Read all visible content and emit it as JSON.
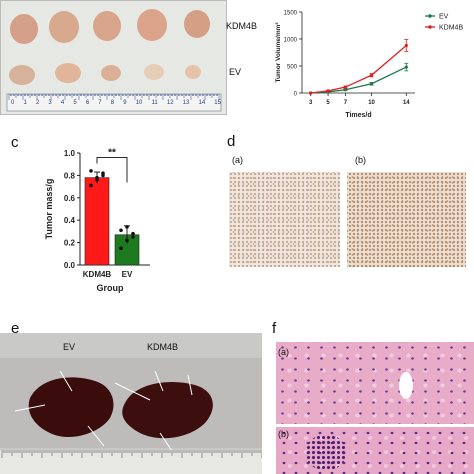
{
  "panel_a": {
    "group_labels": [
      "KDM4B",
      "EV"
    ],
    "ruler_numbers": [
      "0",
      "1",
      "2",
      "3",
      "4",
      "5",
      "6",
      "7",
      "8",
      "9",
      "10",
      "11",
      "12",
      "13",
      "14",
      "15"
    ]
  },
  "chart_data": [
    {
      "type": "line",
      "panel": "b",
      "xlabel": "Times/d",
      "ylabel": "Tumor Volume/mm³",
      "x": [
        3,
        5,
        7,
        10,
        14
      ],
      "xticks": [
        "3",
        "5",
        "7",
        "10",
        "14"
      ],
      "yticks": [
        "0",
        "500",
        "1000",
        "1500"
      ],
      "ylim": [
        0,
        1500
      ],
      "legend_position": "top-right",
      "series": [
        {
          "name": "EV",
          "color": "#1f7a4d",
          "values": [
            0,
            20,
            60,
            170,
            480
          ],
          "err": [
            0,
            8,
            15,
            25,
            70
          ]
        },
        {
          "name": "KDM4B",
          "color": "#e02020",
          "values": [
            0,
            40,
            110,
            330,
            880
          ],
          "err": [
            0,
            10,
            20,
            30,
            110
          ]
        }
      ]
    },
    {
      "type": "bar",
      "panel": "c",
      "categories": [
        "KDM4B",
        "EV"
      ],
      "values": [
        0.78,
        0.27
      ],
      "err": [
        0.05,
        0.08
      ],
      "colors": [
        "#ff1a1a",
        "#1e7a1e"
      ],
      "points": [
        [
          0.71,
          0.76,
          0.8,
          0.84,
          0.78,
          0.82
        ],
        [
          0.15,
          0.22,
          0.28,
          0.31,
          0.34,
          0.25
        ]
      ],
      "xlabel": "Group",
      "ylabel": "Tumor mass/g",
      "yticks": [
        "0.0",
        "0.2",
        "0.4",
        "0.6",
        "0.8",
        "1.0"
      ],
      "ylim": [
        0,
        1.0
      ],
      "significance": "**"
    }
  ],
  "panels": {
    "c_letter": "c",
    "d_letter": "d",
    "e_letter": "e",
    "f_letter": "f",
    "d_sub": [
      "(a)",
      "(b)"
    ],
    "e_labels": [
      "EV",
      "KDM4B"
    ],
    "f_sub": [
      "(a)",
      "(b)"
    ]
  },
  "colors": {
    "tumor": "#d9a78e",
    "liver": "#3a0d0d",
    "ihc_bg": "#ece4dc",
    "he_pink": "#e7a9c9"
  }
}
